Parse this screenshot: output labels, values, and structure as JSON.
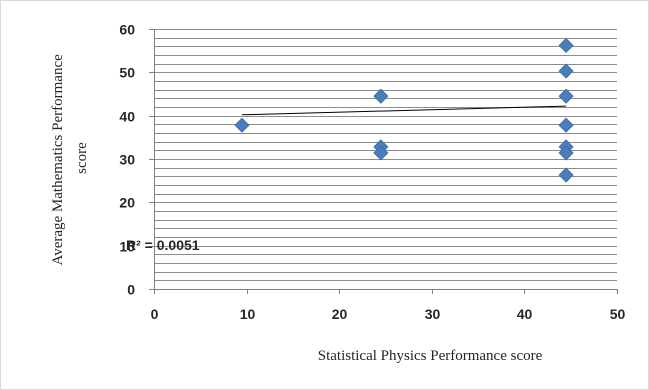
{
  "chart_data": {
    "type": "scatter",
    "xlabel": "Statistical Physics Performance score",
    "ylabel_lines": [
      "Average Mathematics Performance",
      "score"
    ],
    "xlim": [
      0,
      50
    ],
    "ylim": [
      0,
      60
    ],
    "x_ticks": [
      "0",
      "10",
      "20",
      "30",
      "40",
      "50"
    ],
    "y_ticks": [
      "0",
      "10",
      "20",
      "30",
      "40",
      "50",
      "60"
    ],
    "grid": true,
    "grid_minor_step": 2,
    "marker_color": "#4a7ebb",
    "points": [
      {
        "x": 9.5,
        "y": 37.8
      },
      {
        "x": 24.5,
        "y": 44.5
      },
      {
        "x": 24.5,
        "y": 32.8
      },
      {
        "x": 24.5,
        "y": 31.4
      },
      {
        "x": 44.5,
        "y": 56.2
      },
      {
        "x": 44.5,
        "y": 50.3
      },
      {
        "x": 44.5,
        "y": 44.5
      },
      {
        "x": 44.5,
        "y": 37.8
      },
      {
        "x": 44.5,
        "y": 32.8
      },
      {
        "x": 44.5,
        "y": 31.4
      },
      {
        "x": 44.5,
        "y": 26.3
      }
    ],
    "trendline": {
      "x": [
        9.5,
        44.5
      ],
      "y": [
        40.2,
        42.2
      ]
    },
    "r2_label": "R² = 0.0051"
  }
}
